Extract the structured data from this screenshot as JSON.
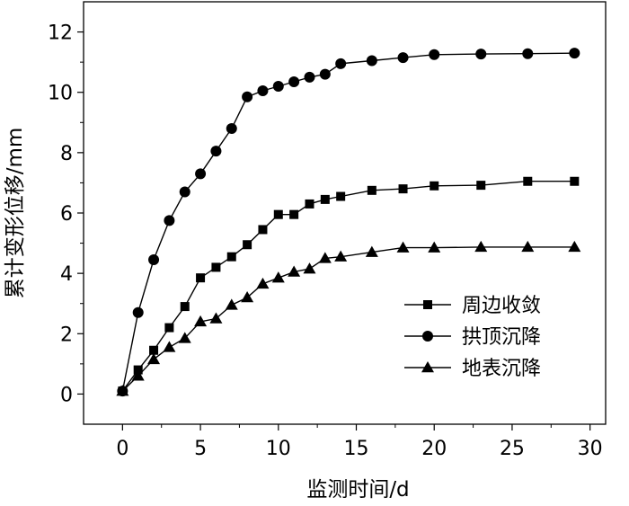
{
  "chart_data": {
    "type": "line",
    "title": "",
    "xlabel": "监测时间/d",
    "ylabel": "累计变形位移/mm",
    "xlim": [
      -2.5,
      31
    ],
    "ylim": [
      -1,
      13
    ],
    "xticks": [
      0,
      5,
      10,
      15,
      20,
      25,
      30
    ],
    "yticks": [
      0,
      2,
      4,
      6,
      8,
      10,
      12
    ],
    "grid": false,
    "legend": "center-right",
    "series": [
      {
        "name": "周边收敛",
        "marker": "square",
        "x": [
          0,
          1,
          2,
          3,
          4,
          5,
          6,
          7,
          8,
          9,
          10,
          11,
          12,
          13,
          14,
          16,
          18,
          20,
          23,
          26,
          29
        ],
        "y": [
          0.1,
          0.8,
          1.45,
          2.2,
          2.9,
          3.85,
          4.2,
          4.55,
          4.95,
          5.45,
          5.95,
          5.95,
          6.3,
          6.45,
          6.55,
          6.75,
          6.8,
          6.9,
          6.92,
          7.05,
          7.05
        ]
      },
      {
        "name": "拱顶沉降",
        "marker": "circle",
        "x": [
          0,
          1,
          2,
          3,
          4,
          5,
          6,
          7,
          8,
          9,
          10,
          11,
          12,
          13,
          14,
          16,
          18,
          20,
          23,
          26,
          29
        ],
        "y": [
          0.1,
          2.7,
          4.45,
          5.75,
          6.7,
          7.3,
          8.05,
          8.8,
          9.85,
          10.05,
          10.2,
          10.35,
          10.5,
          10.6,
          10.95,
          11.05,
          11.15,
          11.25,
          11.27,
          11.28,
          11.3
        ]
      },
      {
        "name": "地表沉降",
        "marker": "triangle",
        "x": [
          0,
          1,
          2,
          3,
          4,
          5,
          6,
          7,
          8,
          9,
          10,
          11,
          12,
          13,
          14,
          16,
          18,
          20,
          23,
          26,
          29
        ],
        "y": [
          0.1,
          0.6,
          1.15,
          1.55,
          1.85,
          2.4,
          2.5,
          2.95,
          3.2,
          3.65,
          3.85,
          4.05,
          4.15,
          4.5,
          4.55,
          4.7,
          4.85,
          4.85,
          4.87,
          4.87,
          4.87
        ]
      }
    ]
  }
}
